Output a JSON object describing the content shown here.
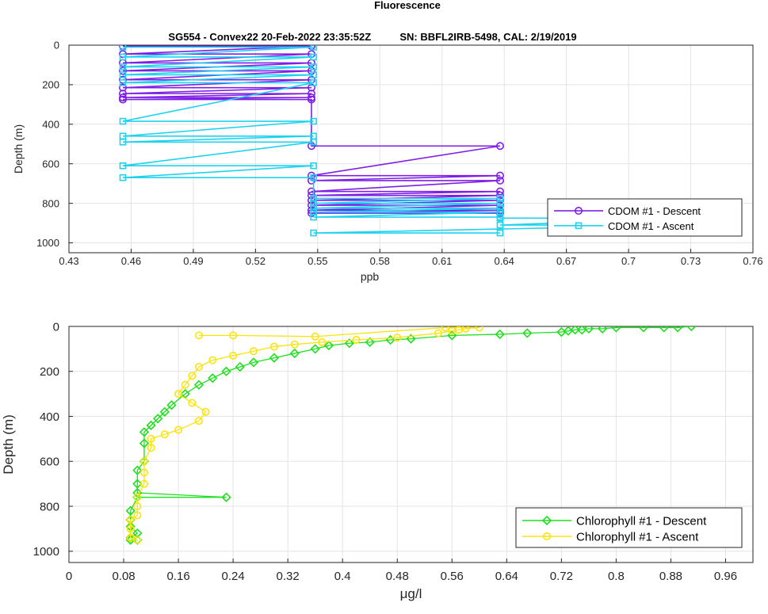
{
  "figure": {
    "title": "Fluorescence"
  },
  "chart_data": [
    {
      "type": "line",
      "subtitle": "SG554 - Convex22 20-Feb-2022 23:35:52Z          SN: BBFL2IRB-5498, CAL: 2/19/2019",
      "xlabel": "ppb",
      "ylabel": "Depth (m)",
      "xlim": [
        0.43,
        0.76
      ],
      "ylim": [
        0,
        1050
      ],
      "y_reversed": true,
      "grid": true,
      "legend_position": "bottom-right",
      "xticks": [
        "0.43",
        "0.46",
        "0.49",
        "0.52",
        "0.55",
        "0.58",
        "0.61",
        "0.64",
        "0.67",
        "0.7",
        "0.73",
        "0.76"
      ],
      "yticks": [
        "0",
        "200",
        "400",
        "600",
        "800",
        "1000"
      ],
      "series": [
        {
          "name": "CDOM #1 - Descent",
          "color": "#7f1fe5",
          "marker": "circle",
          "x": [
            0.456,
            0.547,
            0.456,
            0.547,
            0.456,
            0.547,
            0.456,
            0.547,
            0.456,
            0.547,
            0.456,
            0.547,
            0.456,
            0.547,
            0.456,
            0.547,
            0.456,
            0.547,
            0.547,
            0.638,
            0.547,
            0.638,
            0.547,
            0.638,
            0.547,
            0.638,
            0.547,
            0.638,
            0.547,
            0.638,
            0.547,
            0.638,
            0.547,
            0.638,
            0.547,
            0.638
          ],
          "y": [
            5,
            5,
            45,
            45,
            90,
            90,
            130,
            130,
            175,
            175,
            215,
            215,
            245,
            245,
            265,
            265,
            275,
            275,
            510,
            510,
            660,
            660,
            685,
            685,
            740,
            740,
            760,
            760,
            785,
            785,
            810,
            810,
            835,
            835,
            850,
            850
          ]
        },
        {
          "name": "CDOM #1 - Ascent",
          "color": "#1fd3ef",
          "marker": "square",
          "x": [
            0.456,
            0.548,
            0.456,
            0.548,
            0.456,
            0.548,
            0.456,
            0.548,
            0.456,
            0.548,
            0.456,
            0.548,
            0.456,
            0.548,
            0.456,
            0.548,
            0.456,
            0.548,
            0.456,
            0.548,
            0.548,
            0.638,
            0.548,
            0.638,
            0.548,
            0.638,
            0.548,
            0.638,
            0.548,
            0.638,
            0.638,
            0.729,
            0.638,
            0.729,
            0.548,
            0.638
          ],
          "y": [
            10,
            10,
            60,
            60,
            110,
            110,
            150,
            150,
            190,
            190,
            385,
            385,
            460,
            460,
            490,
            490,
            610,
            610,
            670,
            670,
            775,
            775,
            800,
            800,
            825,
            825,
            845,
            845,
            870,
            870,
            875,
            875,
            910,
            910,
            950,
            950
          ]
        }
      ]
    },
    {
      "type": "line",
      "xlabel": "μg/l",
      "ylabel": "Depth (m)",
      "xlim": [
        0,
        1.0
      ],
      "ylim": [
        0,
        1050
      ],
      "y_reversed": true,
      "grid": true,
      "legend_position": "bottom-right",
      "xticks": [
        "0",
        "0.08",
        "0.16",
        "0.24",
        "0.32",
        "0.4",
        "0.48",
        "0.56",
        "0.64",
        "0.72",
        "0.8",
        "0.88",
        "0.96"
      ],
      "yticks": [
        "0",
        "200",
        "400",
        "600",
        "800",
        "1000"
      ],
      "series": [
        {
          "name": "Chlorophyll #1 - Descent",
          "color": "#1ee01e",
          "marker": "diamond",
          "x": [
            0.91,
            0.89,
            0.87,
            0.84,
            0.8,
            0.78,
            0.76,
            0.75,
            0.74,
            0.73,
            0.72,
            0.67,
            0.63,
            0.56,
            0.5,
            0.47,
            0.44,
            0.41,
            0.38,
            0.36,
            0.33,
            0.3,
            0.27,
            0.25,
            0.23,
            0.21,
            0.19,
            0.17,
            0.15,
            0.14,
            0.13,
            0.12,
            0.11,
            0.11,
            0.11,
            0.1,
            0.1,
            0.1,
            0.23,
            0.1,
            0.09,
            0.09,
            0.09,
            0.1,
            0.09,
            0.1,
            0.09
          ],
          "y": [
            0,
            5,
            5,
            5,
            5,
            10,
            10,
            15,
            15,
            20,
            25,
            30,
            35,
            40,
            55,
            60,
            70,
            75,
            85,
            100,
            120,
            140,
            160,
            180,
            200,
            230,
            260,
            300,
            350,
            380,
            410,
            440,
            470,
            520,
            600,
            640,
            700,
            740,
            760,
            760,
            820,
            860,
            890,
            920,
            940,
            950,
            950
          ]
        },
        {
          "name": "Chlorophyll #1 - Ascent",
          "color": "#fbe40a",
          "marker": "circle",
          "x": [
            0.19,
            0.24,
            0.36,
            0.55,
            0.6,
            0.58,
            0.57,
            0.56,
            0.54,
            0.48,
            0.42,
            0.37,
            0.33,
            0.3,
            0.27,
            0.24,
            0.21,
            0.19,
            0.18,
            0.17,
            0.16,
            0.18,
            0.2,
            0.19,
            0.16,
            0.14,
            0.12,
            0.12,
            0.11,
            0.11,
            0.11,
            0.1,
            0.1,
            0.1,
            0.09,
            0.09,
            0.09,
            0.1
          ],
          "y": [
            40,
            40,
            45,
            5,
            5,
            10,
            15,
            20,
            30,
            50,
            60,
            70,
            80,
            90,
            110,
            130,
            150,
            180,
            220,
            260,
            300,
            340,
            380,
            420,
            460,
            480,
            500,
            540,
            600,
            650,
            700,
            760,
            800,
            840,
            860,
            900,
            940,
            950
          ]
        }
      ]
    }
  ]
}
